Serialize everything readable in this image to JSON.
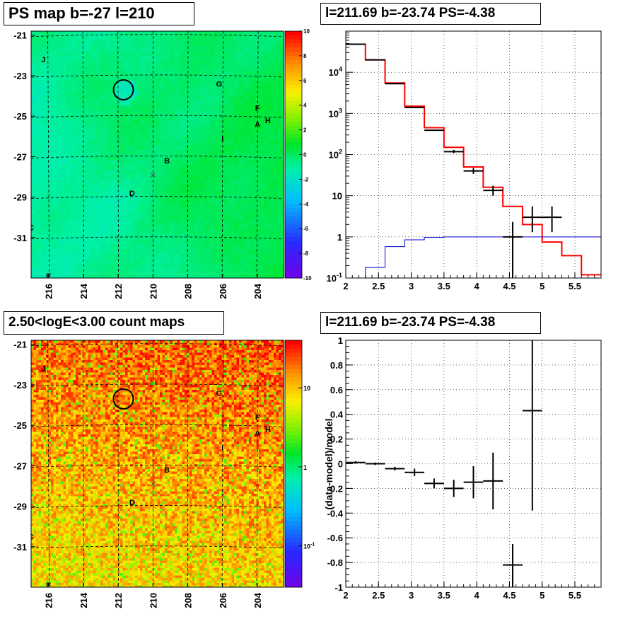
{
  "panels": {
    "ps_map": {
      "title": "PS map b=-27 l=210",
      "lat_ticks": [
        "-21",
        "-23",
        "-25",
        "-27",
        "-29",
        "-31"
      ],
      "lon_ticks": [
        "216",
        "214",
        "212",
        "210",
        "208",
        "206",
        "204"
      ],
      "colorbar_ticks": [
        "10",
        "8",
        "6",
        "4",
        "2",
        "0",
        "-2",
        "-4",
        "-6",
        "-8",
        "-10"
      ],
      "source_labels": [
        "J",
        "G",
        "F",
        "A",
        "H",
        "I",
        "B",
        "D",
        "C",
        "E"
      ]
    },
    "count_map": {
      "title": "2.50<logE<3.00 count maps",
      "lat_ticks": [
        "-21",
        "-23",
        "-25",
        "-27",
        "-29",
        "-31"
      ],
      "lon_ticks": [
        "216",
        "214",
        "212",
        "210",
        "208",
        "206",
        "204"
      ],
      "colorbar_ticks": [
        "10",
        "1",
        "10^-1"
      ],
      "source_labels": [
        "J",
        "G",
        "F",
        "A",
        "H",
        "I",
        "B",
        "D",
        "C",
        "E"
      ]
    },
    "spectrum": {
      "title": "l=211.69 b=-23.74 PS=-4.38"
    },
    "residual": {
      "title": "l=211.69 b=-23.74 PS=-4.38",
      "ylabel": "(data-model)/model"
    }
  },
  "colors": {
    "model_line": "#ff0000",
    "data_points": "#000000",
    "ps_component": "#0000cc",
    "grid": "#000000"
  },
  "chart_data": [
    {
      "type": "heatmap",
      "title": "PS map b=-27 l=210",
      "xlabel": "",
      "ylabel": "",
      "xlim": [
        217,
        202.5
      ],
      "ylim": [
        -33,
        -20.8
      ],
      "zlim": [
        -10,
        10
      ],
      "dominant_value_range": [
        -3,
        1
      ],
      "sources": [
        {
          "label": "J",
          "l": 216.3,
          "b": -22.2
        },
        {
          "label": "G",
          "l": 206.2,
          "b": -23.4
        },
        {
          "label": "F",
          "l": 204.0,
          "b": -24.6
        },
        {
          "label": "A",
          "l": 204.0,
          "b": -25.4
        },
        {
          "label": "H",
          "l": 203.4,
          "b": -25.2
        },
        {
          "label": "I",
          "l": 206.0,
          "b": -26.1
        },
        {
          "label": "B",
          "l": 209.2,
          "b": -27.2
        },
        {
          "label": "D",
          "l": 211.2,
          "b": -28.8
        },
        {
          "label": "C",
          "l": 217.0,
          "b": -30.5
        },
        {
          "label": "E",
          "l": 216.0,
          "b": -32.9
        }
      ],
      "circle": {
        "l": 211.7,
        "b": -23.7
      },
      "cross": {
        "l": 210.0,
        "b": -27.9
      }
    },
    {
      "type": "line",
      "title": "l=211.69 b=-23.74 PS=-4.38",
      "xlim": [
        2,
        5.9
      ],
      "ylim": [
        0.1,
        100000
      ],
      "yscale": "log",
      "grid": true,
      "xticks": [
        "2",
        "2.5",
        "3",
        "3.5",
        "4",
        "4.5",
        "5",
        "5.5"
      ],
      "yticks": [
        "10^-1",
        "1",
        "10",
        "10^2",
        "10^3",
        "10^4"
      ],
      "series": [
        {
          "kind": "step",
          "color": "#ff0000",
          "x_edges": [
            2.0,
            2.3,
            2.6,
            2.9,
            3.2,
            3.5,
            3.8,
            4.1,
            4.4,
            4.7,
            5.0,
            5.3,
            5.6,
            5.9
          ],
          "values": [
            48000,
            20000,
            5500,
            1500,
            450,
            150,
            50,
            16,
            5.5,
            2.0,
            0.75,
            0.35,
            0.12
          ]
        },
        {
          "kind": "step",
          "color": "#0000cc",
          "x_edges": [
            2.0,
            2.3,
            2.6,
            2.9,
            3.2,
            3.5,
            3.8,
            4.1,
            4.4,
            4.7,
            5.0,
            5.3,
            5.6,
            5.9
          ],
          "values": [
            0.1,
            0.18,
            0.58,
            0.85,
            0.97,
            1.0,
            1.0,
            1.0,
            1.0,
            1.0,
            1.0,
            1.0,
            1.0
          ]
        },
        {
          "kind": "errorbar",
          "color": "#000000",
          "points": [
            {
              "x": 2.15,
              "y": 48000,
              "xerr": 0.15
            },
            {
              "x": 2.45,
              "y": 20000,
              "xerr": 0.15
            },
            {
              "x": 2.75,
              "y": 5300,
              "xerr": 0.15
            },
            {
              "x": 3.05,
              "y": 1400,
              "xerr": 0.15
            },
            {
              "x": 3.35,
              "y": 390,
              "xerr": 0.15
            },
            {
              "x": 3.65,
              "y": 118,
              "xerr": 0.15,
              "ylo": 108,
              "yhi": 130
            },
            {
              "x": 3.95,
              "y": 40,
              "xerr": 0.15,
              "ylo": 34,
              "yhi": 47
            },
            {
              "x": 4.25,
              "y": 13.5,
              "xerr": 0.15,
              "ylo": 10,
              "yhi": 17.5
            },
            {
              "x": 4.55,
              "y": 1.0,
              "xerr": 0.15,
              "ylo": 0.1,
              "yhi": 2.3
            },
            {
              "x": 4.85,
              "y": 3.0,
              "xerr": 0.15,
              "ylo": 1.3,
              "yhi": 5.5
            },
            {
              "x": 5.15,
              "y": 3.0,
              "xerr": 0.15,
              "ylo": 1.3,
              "yhi": 5.5
            }
          ]
        }
      ]
    },
    {
      "type": "heatmap",
      "title": "2.50<logE<3.00 count maps",
      "xlim": [
        217,
        202.5
      ],
      "ylim": [
        -33,
        -20.8
      ],
      "zscale": "log",
      "zlim": [
        0.03,
        40
      ],
      "dominant_value_range": [
        3,
        15
      ],
      "sources": [
        {
          "label": "J",
          "l": 216.3,
          "b": -22.2
        },
        {
          "label": "G",
          "l": 206.2,
          "b": -23.4
        },
        {
          "label": "F",
          "l": 204.0,
          "b": -24.6
        },
        {
          "label": "A",
          "l": 204.0,
          "b": -25.4
        },
        {
          "label": "H",
          "l": 203.4,
          "b": -25.2
        },
        {
          "label": "I",
          "l": 206.0,
          "b": -26.1
        },
        {
          "label": "B",
          "l": 209.2,
          "b": -27.2
        },
        {
          "label": "D",
          "l": 211.2,
          "b": -28.8
        },
        {
          "label": "C",
          "l": 217.0,
          "b": -30.5
        },
        {
          "label": "E",
          "l": 216.0,
          "b": -32.9
        }
      ],
      "circle": {
        "l": 211.7,
        "b": -23.7
      },
      "cross": {
        "l": 210.0,
        "b": -27.9
      }
    },
    {
      "type": "scatter",
      "title": "l=211.69 b=-23.74 PS=-4.38",
      "ylabel": "(data-model)/model",
      "xlim": [
        2,
        5.9
      ],
      "ylim": [
        -1,
        1
      ],
      "grid": true,
      "xticks": [
        "2",
        "2.5",
        "3",
        "3.5",
        "4",
        "4.5",
        "5",
        "5.5"
      ],
      "yticks": [
        "-1",
        "-0.8",
        "-0.6",
        "-0.4",
        "-0.2",
        "0",
        "0.2",
        "0.4",
        "0.6",
        "0.8",
        "1"
      ],
      "points": [
        {
          "x": 2.15,
          "y": 0.01,
          "xerr": 0.15,
          "ylo": 0.0,
          "yhi": 0.02
        },
        {
          "x": 2.45,
          "y": 0.0,
          "xerr": 0.15,
          "ylo": -0.01,
          "yhi": 0.01
        },
        {
          "x": 2.75,
          "y": -0.04,
          "xerr": 0.15,
          "ylo": -0.055,
          "yhi": -0.025
        },
        {
          "x": 3.05,
          "y": -0.07,
          "xerr": 0.15,
          "ylo": -0.1,
          "yhi": -0.04
        },
        {
          "x": 3.35,
          "y": -0.16,
          "xerr": 0.15,
          "ylo": -0.2,
          "yhi": -0.12
        },
        {
          "x": 3.65,
          "y": -0.2,
          "xerr": 0.15,
          "ylo": -0.27,
          "yhi": -0.13
        },
        {
          "x": 3.95,
          "y": -0.15,
          "xerr": 0.15,
          "ylo": -0.28,
          "yhi": -0.02
        },
        {
          "x": 4.25,
          "y": -0.14,
          "xerr": 0.15,
          "ylo": -0.37,
          "yhi": 0.09
        },
        {
          "x": 4.55,
          "y": -0.82,
          "xerr": 0.15,
          "ylo": -1.0,
          "yhi": -0.65
        },
        {
          "x": 4.85,
          "y": 0.43,
          "xerr": 0.15,
          "ylo": -0.38,
          "yhi": 1.0
        }
      ]
    }
  ]
}
